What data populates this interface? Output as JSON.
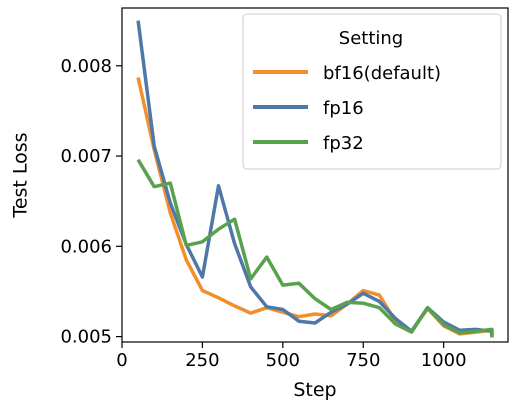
{
  "chart_data": {
    "type": "line",
    "xlabel": "Step",
    "ylabel": "Test Loss",
    "xlim": [
      0,
      1200
    ],
    "ylim": [
      0.00494,
      0.00864
    ],
    "x_ticks": [
      0,
      250,
      500,
      750,
      1000
    ],
    "x_tick_labels": [
      "0",
      "250",
      "500",
      "750",
      "1000"
    ],
    "y_ticks": [
      0.005,
      0.006,
      0.007,
      0.008
    ],
    "y_tick_labels": [
      "0.005",
      "0.006",
      "0.007",
      "0.008"
    ],
    "grid": false,
    "legend": {
      "title": "Setting",
      "placement": "top-right"
    },
    "series": [
      {
        "name": "bf16(default)",
        "color": "#f28e2b",
        "x": [
          50,
          100,
          150,
          200,
          250,
          300,
          350,
          400,
          450,
          500,
          550,
          600,
          650,
          700,
          750,
          800,
          850,
          900,
          950,
          1000,
          1050,
          1100,
          1150,
          1150
        ],
        "y": [
          0.00787,
          0.00707,
          0.00637,
          0.00585,
          0.00551,
          0.00543,
          0.00534,
          0.00526,
          0.00532,
          0.00527,
          0.00522,
          0.00525,
          0.00523,
          0.00536,
          0.00551,
          0.00546,
          0.00517,
          0.00506,
          0.00531,
          0.00512,
          0.00503,
          0.00505,
          0.00507,
          0.005
        ]
      },
      {
        "name": "fp16",
        "color": "#4e79a7",
        "x": [
          50,
          100,
          150,
          200,
          250,
          300,
          350,
          400,
          450,
          500,
          550,
          600,
          650,
          700,
          750,
          800,
          850,
          900,
          950,
          1000,
          1050,
          1100,
          1150,
          1150
        ],
        "y": [
          0.0085,
          0.00711,
          0.00648,
          0.00602,
          0.00566,
          0.00667,
          0.00603,
          0.00555,
          0.00533,
          0.0053,
          0.00517,
          0.00515,
          0.00527,
          0.00536,
          0.00548,
          0.00539,
          0.0052,
          0.00506,
          0.00532,
          0.00516,
          0.00507,
          0.00508,
          0.00506,
          0.00501
        ]
      },
      {
        "name": "fp32",
        "color": "#59a14f",
        "x": [
          50,
          100,
          150,
          200,
          250,
          300,
          350,
          400,
          450,
          500,
          550,
          600,
          650,
          700,
          750,
          800,
          850,
          900,
          950,
          1000,
          1050,
          1100,
          1150,
          1150
        ],
        "y": [
          0.00696,
          0.00666,
          0.0067,
          0.00601,
          0.00605,
          0.00619,
          0.0063,
          0.00564,
          0.00588,
          0.00557,
          0.00559,
          0.00542,
          0.0053,
          0.00538,
          0.00537,
          0.00532,
          0.00514,
          0.00505,
          0.00532,
          0.00513,
          0.00504,
          0.00506,
          0.00508,
          0.00499
        ]
      }
    ]
  }
}
